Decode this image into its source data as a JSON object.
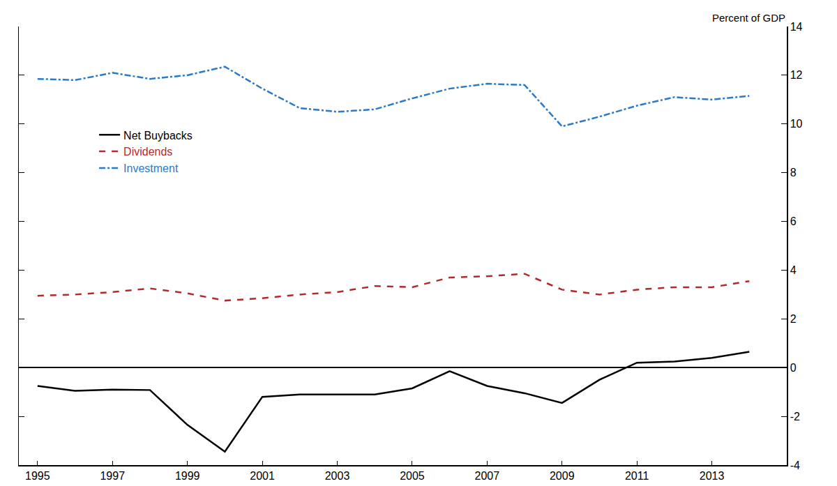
{
  "chart_data": {
    "type": "line",
    "y_label": "Percent of GDP",
    "x": [
      1995,
      1996,
      1997,
      1998,
      1999,
      2000,
      2001,
      2002,
      2003,
      2004,
      2005,
      2006,
      2007,
      2008,
      2009,
      2010,
      2011,
      2012,
      2013,
      2014
    ],
    "series": [
      {
        "name": "Net Buybacks",
        "color": "#000000",
        "line_style": "solid",
        "values": [
          -0.75,
          -0.95,
          -0.9,
          -0.92,
          -2.35,
          -3.45,
          -1.2,
          -1.1,
          -1.1,
          -1.1,
          -0.85,
          -0.15,
          -0.75,
          -1.05,
          -1.45,
          -0.5,
          0.2,
          0.25,
          0.4,
          0.65
        ]
      },
      {
        "name": "Dividends",
        "color": "#b22a2e",
        "line_style": "dash",
        "values": [
          2.95,
          3.0,
          3.1,
          3.25,
          3.05,
          2.75,
          2.85,
          3.0,
          3.1,
          3.35,
          3.3,
          3.7,
          3.75,
          3.85,
          3.2,
          3.0,
          3.2,
          3.3,
          3.3,
          3.55
        ]
      },
      {
        "name": "Investment",
        "color": "#2a7ac8",
        "line_style": "dashdot",
        "values": [
          11.85,
          11.8,
          12.1,
          11.85,
          12.0,
          12.35,
          11.45,
          10.65,
          10.5,
          10.6,
          11.05,
          11.45,
          11.65,
          11.6,
          9.9,
          10.3,
          10.75,
          11.1,
          11.0,
          11.15
        ]
      }
    ],
    "xlim": [
      1994.5,
      2015
    ],
    "xticks": [
      1995,
      1997,
      1999,
      2001,
      2003,
      2005,
      2007,
      2009,
      2011,
      2013
    ],
    "ylim": [
      -4,
      14
    ],
    "yticks": [
      -4,
      -2,
      0,
      2,
      4,
      6,
      8,
      10,
      12,
      14
    ],
    "grid": false,
    "legend": "upper left"
  }
}
